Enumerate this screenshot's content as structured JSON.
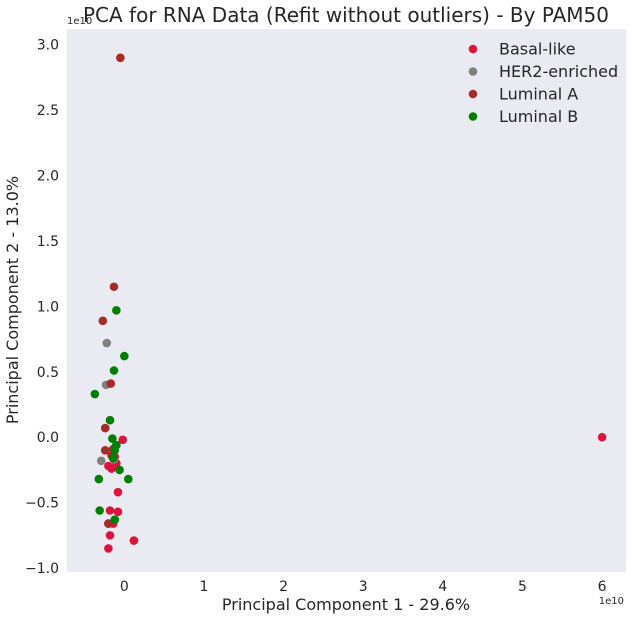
{
  "chart_data": {
    "type": "scatter",
    "title": "PCA for RNA Data (Refit without outliers) - By PAM50",
    "xlabel": "Principal Component 1 - 29.6%",
    "ylabel": "Principal Component 2 - 13.0%",
    "x_offset_label": "1e10",
    "y_offset_label": "1e10",
    "xlim": [
      -0.72,
      6.3
    ],
    "ylim": [
      -1.03,
      3.12
    ],
    "x_ticks": [
      0,
      1,
      2,
      3,
      4,
      5,
      6
    ],
    "x_tick_labels": [
      "0",
      "1",
      "2",
      "3",
      "4",
      "5",
      "6"
    ],
    "y_ticks": [
      -1.0,
      -0.5,
      0.0,
      0.5,
      1.0,
      1.5,
      2.0,
      2.5,
      3.0
    ],
    "y_tick_labels": [
      "−1.0",
      "−0.5",
      "0.0",
      "0.5",
      "1.0",
      "1.5",
      "2.0",
      "2.5",
      "3.0"
    ],
    "grid": false,
    "background_color": "#EAEAF2",
    "legend_position": "top-right",
    "series": [
      {
        "name": "Basal-like",
        "color": "#DC143C",
        "points": [
          [
            6.0,
            0.0
          ],
          [
            0.12,
            -0.79
          ],
          [
            -0.02,
            -0.02
          ],
          [
            -0.12,
            -0.15
          ],
          [
            -0.08,
            -0.42
          ],
          [
            -0.08,
            -0.57
          ],
          [
            -0.18,
            -0.56
          ],
          [
            -0.14,
            -0.66
          ],
          [
            -0.2,
            -0.66
          ],
          [
            -0.18,
            -0.75
          ],
          [
            -0.2,
            -0.85
          ],
          [
            -0.2,
            -0.22
          ],
          [
            -0.16,
            -0.24
          ],
          [
            -0.1,
            -0.2
          ]
        ]
      },
      {
        "name": "HER2-enriched",
        "color": "#808080",
        "points": [
          [
            -0.22,
            0.72
          ],
          [
            -0.23,
            0.4
          ],
          [
            -0.29,
            -0.18
          ],
          [
            -0.13,
            -0.17
          ]
        ]
      },
      {
        "name": "Luminal A",
        "color": "#A52A2A",
        "points": [
          [
            -0.05,
            2.9
          ],
          [
            -0.13,
            1.15
          ],
          [
            -0.27,
            0.89
          ],
          [
            -0.17,
            0.41
          ],
          [
            -0.24,
            0.07
          ],
          [
            -0.24,
            -0.1
          ],
          [
            -0.16,
            -0.14
          ],
          [
            -0.2,
            -0.66
          ],
          [
            -0.14,
            -0.09
          ]
        ]
      },
      {
        "name": "Luminal B",
        "color": "#008000",
        "points": [
          [
            -0.1,
            0.97
          ],
          [
            0.0,
            0.62
          ],
          [
            -0.13,
            0.51
          ],
          [
            -0.37,
            0.33
          ],
          [
            -0.18,
            0.13
          ],
          [
            -0.15,
            -0.01
          ],
          [
            -0.1,
            -0.06
          ],
          [
            -0.12,
            -0.1
          ],
          [
            -0.14,
            -0.16
          ],
          [
            -0.06,
            -0.25
          ],
          [
            -0.32,
            -0.32
          ],
          [
            0.05,
            -0.32
          ],
          [
            -0.31,
            -0.56
          ],
          [
            -0.12,
            -0.63
          ]
        ]
      }
    ]
  }
}
